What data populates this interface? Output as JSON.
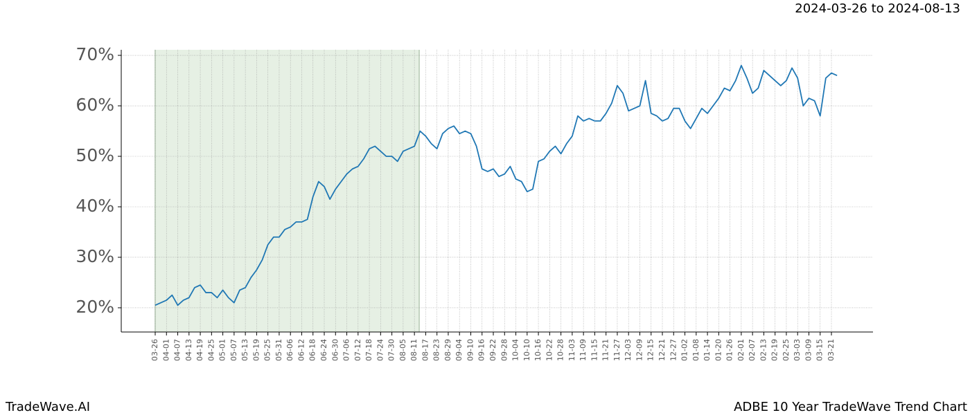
{
  "chart_data": {
    "type": "line",
    "title": "ADBE 10 Year TradeWave Trend Chart",
    "subtitle": "2024-03-26 to 2024-08-13",
    "watermark": "TradeWave.AI",
    "categories": [
      "03-26",
      null,
      "04-01",
      null,
      "04-07",
      null,
      "04-13",
      null,
      "04-19",
      null,
      "04-25",
      null,
      "05-01",
      null,
      "05-07",
      null,
      "05-13",
      null,
      "05-19",
      null,
      "05-25",
      null,
      "05-31",
      null,
      "06-06",
      null,
      "06-12",
      null,
      "06-18",
      null,
      "06-24",
      null,
      "06-30",
      null,
      "07-06",
      null,
      "07-12",
      null,
      "07-18",
      null,
      "07-24",
      null,
      "07-30",
      null,
      "08-05",
      null,
      "08-11",
      null,
      "08-17",
      null,
      "08-23",
      null,
      "08-29",
      null,
      "09-04",
      null,
      "09-10",
      null,
      "09-16",
      null,
      "09-22",
      null,
      "09-28",
      null,
      "10-04",
      null,
      "10-10",
      null,
      "10-16",
      null,
      "10-22",
      null,
      "10-28",
      null,
      "11-03",
      null,
      "11-09",
      null,
      "11-15",
      null,
      "11-21",
      null,
      "11-27",
      null,
      "12-03",
      null,
      "12-09",
      null,
      "12-15",
      null,
      "12-21",
      null,
      "12-27",
      null,
      "01-02",
      null,
      "01-08",
      null,
      "01-14",
      null,
      "01-20",
      null,
      "01-26",
      null,
      "02-01",
      null,
      "02-07",
      null,
      "02-13",
      null,
      "02-19",
      null,
      "02-25",
      null,
      "03-03",
      null,
      "03-09",
      null,
      "03-15",
      null,
      "03-21",
      null
    ],
    "values": [
      20.5,
      21,
      21.5,
      22.5,
      20.5,
      21.5,
      22,
      24,
      24.5,
      23,
      23,
      22,
      23.5,
      22,
      21,
      23.5,
      24,
      26,
      27.5,
      29.5,
      32.5,
      34,
      34,
      35.5,
      36,
      37,
      37,
      37.5,
      42,
      45,
      44,
      41.5,
      43.5,
      45,
      46.5,
      47.5,
      48,
      49.5,
      51.5,
      52,
      51,
      50,
      50,
      49,
      51,
      51.5,
      52,
      55,
      54,
      52.5,
      51.5,
      54.5,
      55.5,
      56,
      54.5,
      55,
      54.5,
      52,
      47.5,
      47,
      47.5,
      46,
      46.5,
      48,
      45.5,
      45,
      43,
      43.5,
      49,
      49.5,
      51,
      52,
      50.5,
      52.5,
      54,
      58,
      57,
      57.5,
      57,
      57,
      58.5,
      60.5,
      64,
      62.5,
      59,
      59.5,
      60,
      65,
      58.5,
      58,
      57,
      57.5,
      59.5,
      59.5,
      57,
      55.5,
      57.5,
      59.5,
      58.5,
      60,
      61.5,
      63.5,
      63,
      65,
      68,
      65.5,
      62.5,
      63.5,
      67,
      66,
      65,
      64,
      65,
      67.5,
      65.5,
      60,
      61.5,
      61,
      58,
      65.5,
      66.5,
      66
    ],
    "color": "#1f77b4",
    "ylim": [
      15.2,
      71.1
    ],
    "yticks": [
      {
        "value": 20,
        "label": "20%"
      },
      {
        "value": 30,
        "label": "30%"
      },
      {
        "value": 40,
        "label": "40%"
      },
      {
        "value": 50,
        "label": "50%"
      },
      {
        "value": 60,
        "label": "60%"
      },
      {
        "value": 70,
        "label": "70%"
      }
    ],
    "grid": true
  }
}
